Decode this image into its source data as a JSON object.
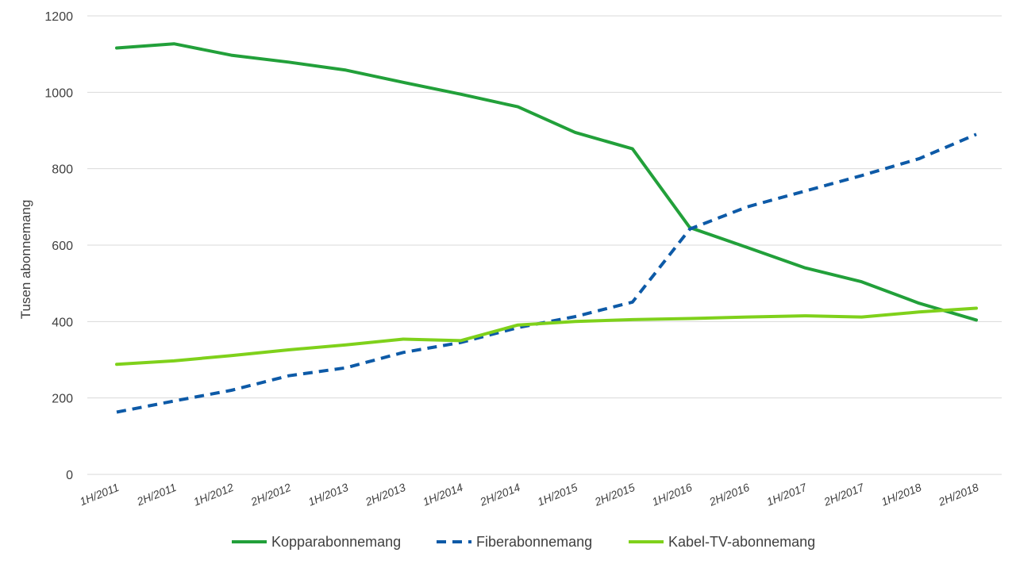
{
  "chart_data": {
    "type": "line",
    "title": "",
    "xlabel": "",
    "ylabel": "Tusen abonnemang",
    "ylim": [
      0,
      1200
    ],
    "yticks": [
      0,
      200,
      400,
      600,
      800,
      1000,
      1200
    ],
    "grid": true,
    "legend_position": "bottom",
    "categories": [
      "1H/2011",
      "2H/2011",
      "1H/2012",
      "2H/2012",
      "1H/2013",
      "2H/2013",
      "1H/2014",
      "2H/2014",
      "1H/2015",
      "2H/2015",
      "1H/2016",
      "2H/2016",
      "1H/2017",
      "2H/2017",
      "1H/2018",
      "2H/2018"
    ],
    "series": [
      {
        "name": "Kopparabonnemang",
        "color": "#22a03a",
        "style": "solid",
        "values": [
          1116,
          1127,
          1097,
          1079,
          1058,
          1026,
          995,
          962,
          895,
          852,
          646,
          594,
          541,
          504,
          448,
          404
        ]
      },
      {
        "name": "Fiberabonnemang",
        "color": "#0d5aa7",
        "style": "dashed",
        "values": [
          163,
          192,
          220,
          258,
          279,
          319,
          345,
          384,
          413,
          451,
          642,
          700,
          741,
          782,
          826,
          890
        ]
      },
      {
        "name": "Kabel-TV-abonnemang",
        "color": "#7fd11b",
        "style": "solid",
        "values": [
          288,
          297,
          311,
          326,
          339,
          354,
          350,
          391,
          400,
          405,
          408,
          412,
          415,
          412,
          425,
          435
        ]
      }
    ]
  }
}
